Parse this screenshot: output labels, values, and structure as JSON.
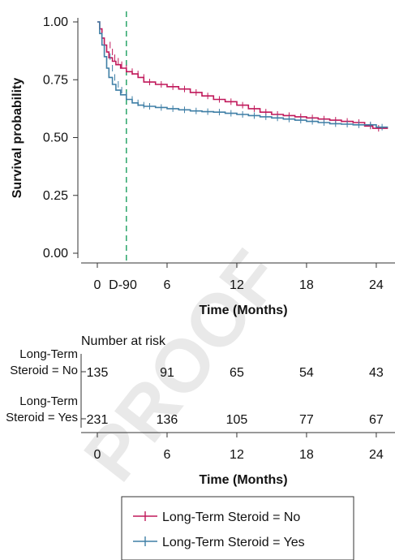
{
  "watermark": "PROOF",
  "chart_data": [
    {
      "type": "line",
      "subtype": "kaplan-meier",
      "ylabel": "Survival probability",
      "xlabel": "Time (Months)",
      "xlim": [
        -1,
        25
      ],
      "ylim": [
        0,
        1
      ],
      "x_ticks": [
        {
          "value": 0,
          "label": "0"
        },
        {
          "value": 2.2,
          "label": "D-90"
        },
        {
          "value": 6,
          "label": "6"
        },
        {
          "value": 12,
          "label": "12"
        },
        {
          "value": 18,
          "label": "18"
        },
        {
          "value": 24,
          "label": "24"
        }
      ],
      "y_ticks": [
        {
          "value": 1.0,
          "label": "1.00"
        },
        {
          "value": 0.75,
          "label": "0.75"
        },
        {
          "value": 0.5,
          "label": "0.50"
        },
        {
          "value": 0.25,
          "label": "0.25"
        },
        {
          "value": 0.0,
          "label": "0.00"
        }
      ],
      "reference_line": {
        "x": 2.5,
        "style": "dashed",
        "color": "#1a9e5e"
      },
      "grid": false,
      "series": [
        {
          "name": "Long-Term Steroid = No",
          "color": "#c0185a",
          "points": [
            [
              0,
              1.0
            ],
            [
              0.2,
              0.97
            ],
            [
              0.4,
              0.93
            ],
            [
              0.6,
              0.9
            ],
            [
              0.8,
              0.87
            ],
            [
              1.0,
              0.845
            ],
            [
              1.3,
              0.83
            ],
            [
              1.6,
              0.815
            ],
            [
              2.0,
              0.8
            ],
            [
              2.5,
              0.785
            ],
            [
              3.0,
              0.775
            ],
            [
              3.5,
              0.76
            ],
            [
              4.0,
              0.74
            ],
            [
              5.0,
              0.73
            ],
            [
              6.0,
              0.72
            ],
            [
              7.0,
              0.71
            ],
            [
              8.0,
              0.695
            ],
            [
              9.0,
              0.68
            ],
            [
              10.0,
              0.665
            ],
            [
              11.0,
              0.655
            ],
            [
              12.0,
              0.64
            ],
            [
              13.0,
              0.625
            ],
            [
              14.0,
              0.61
            ],
            [
              15.0,
              0.6
            ],
            [
              16.0,
              0.595
            ],
            [
              17.0,
              0.59
            ],
            [
              18.0,
              0.585
            ],
            [
              19.0,
              0.58
            ],
            [
              20.0,
              0.575
            ],
            [
              21.0,
              0.57
            ],
            [
              22.0,
              0.565
            ],
            [
              23.0,
              0.55
            ],
            [
              23.7,
              0.54
            ],
            [
              25.0,
              0.54
            ]
          ]
        },
        {
          "name": "Long-Term Steroid = Yes",
          "color": "#3f7fa6",
          "points": [
            [
              0,
              1.0
            ],
            [
              0.2,
              0.95
            ],
            [
              0.4,
              0.9
            ],
            [
              0.6,
              0.85
            ],
            [
              0.8,
              0.8
            ],
            [
              1.0,
              0.76
            ],
            [
              1.3,
              0.73
            ],
            [
              1.6,
              0.705
            ],
            [
              2.0,
              0.685
            ],
            [
              2.5,
              0.665
            ],
            [
              3.0,
              0.65
            ],
            [
              3.5,
              0.64
            ],
            [
              4.0,
              0.635
            ],
            [
              5.0,
              0.63
            ],
            [
              6.0,
              0.625
            ],
            [
              7.0,
              0.62
            ],
            [
              8.0,
              0.615
            ],
            [
              9.0,
              0.612
            ],
            [
              10.0,
              0.61
            ],
            [
              11.0,
              0.605
            ],
            [
              12.0,
              0.6
            ],
            [
              13.0,
              0.595
            ],
            [
              14.0,
              0.59
            ],
            [
              15.0,
              0.585
            ],
            [
              16.0,
              0.58
            ],
            [
              17.0,
              0.575
            ],
            [
              18.0,
              0.57
            ],
            [
              19.0,
              0.565
            ],
            [
              20.0,
              0.56
            ],
            [
              21.0,
              0.558
            ],
            [
              22.0,
              0.555
            ],
            [
              23.0,
              0.555
            ],
            [
              24.0,
              0.545
            ],
            [
              25.0,
              0.545
            ]
          ]
        }
      ]
    },
    {
      "type": "table",
      "title": "Number at risk",
      "xlabel": "Time (Months)",
      "x_ticks": [
        0,
        6,
        12,
        18,
        24
      ],
      "row_labels": [
        {
          "line1": "Long-Term",
          "line2": "Steroid = No"
        },
        {
          "line1": "Long-Term",
          "line2": "Steroid = Yes"
        }
      ],
      "rows": [
        [
          135,
          91,
          65,
          54,
          43
        ],
        [
          231,
          136,
          105,
          77,
          67
        ]
      ]
    }
  ],
  "legend": {
    "items": [
      {
        "label": "Long-Term Steroid = No",
        "color": "#c0185a"
      },
      {
        "label": "Long-Term Steroid = Yes",
        "color": "#3f7fa6"
      }
    ]
  }
}
